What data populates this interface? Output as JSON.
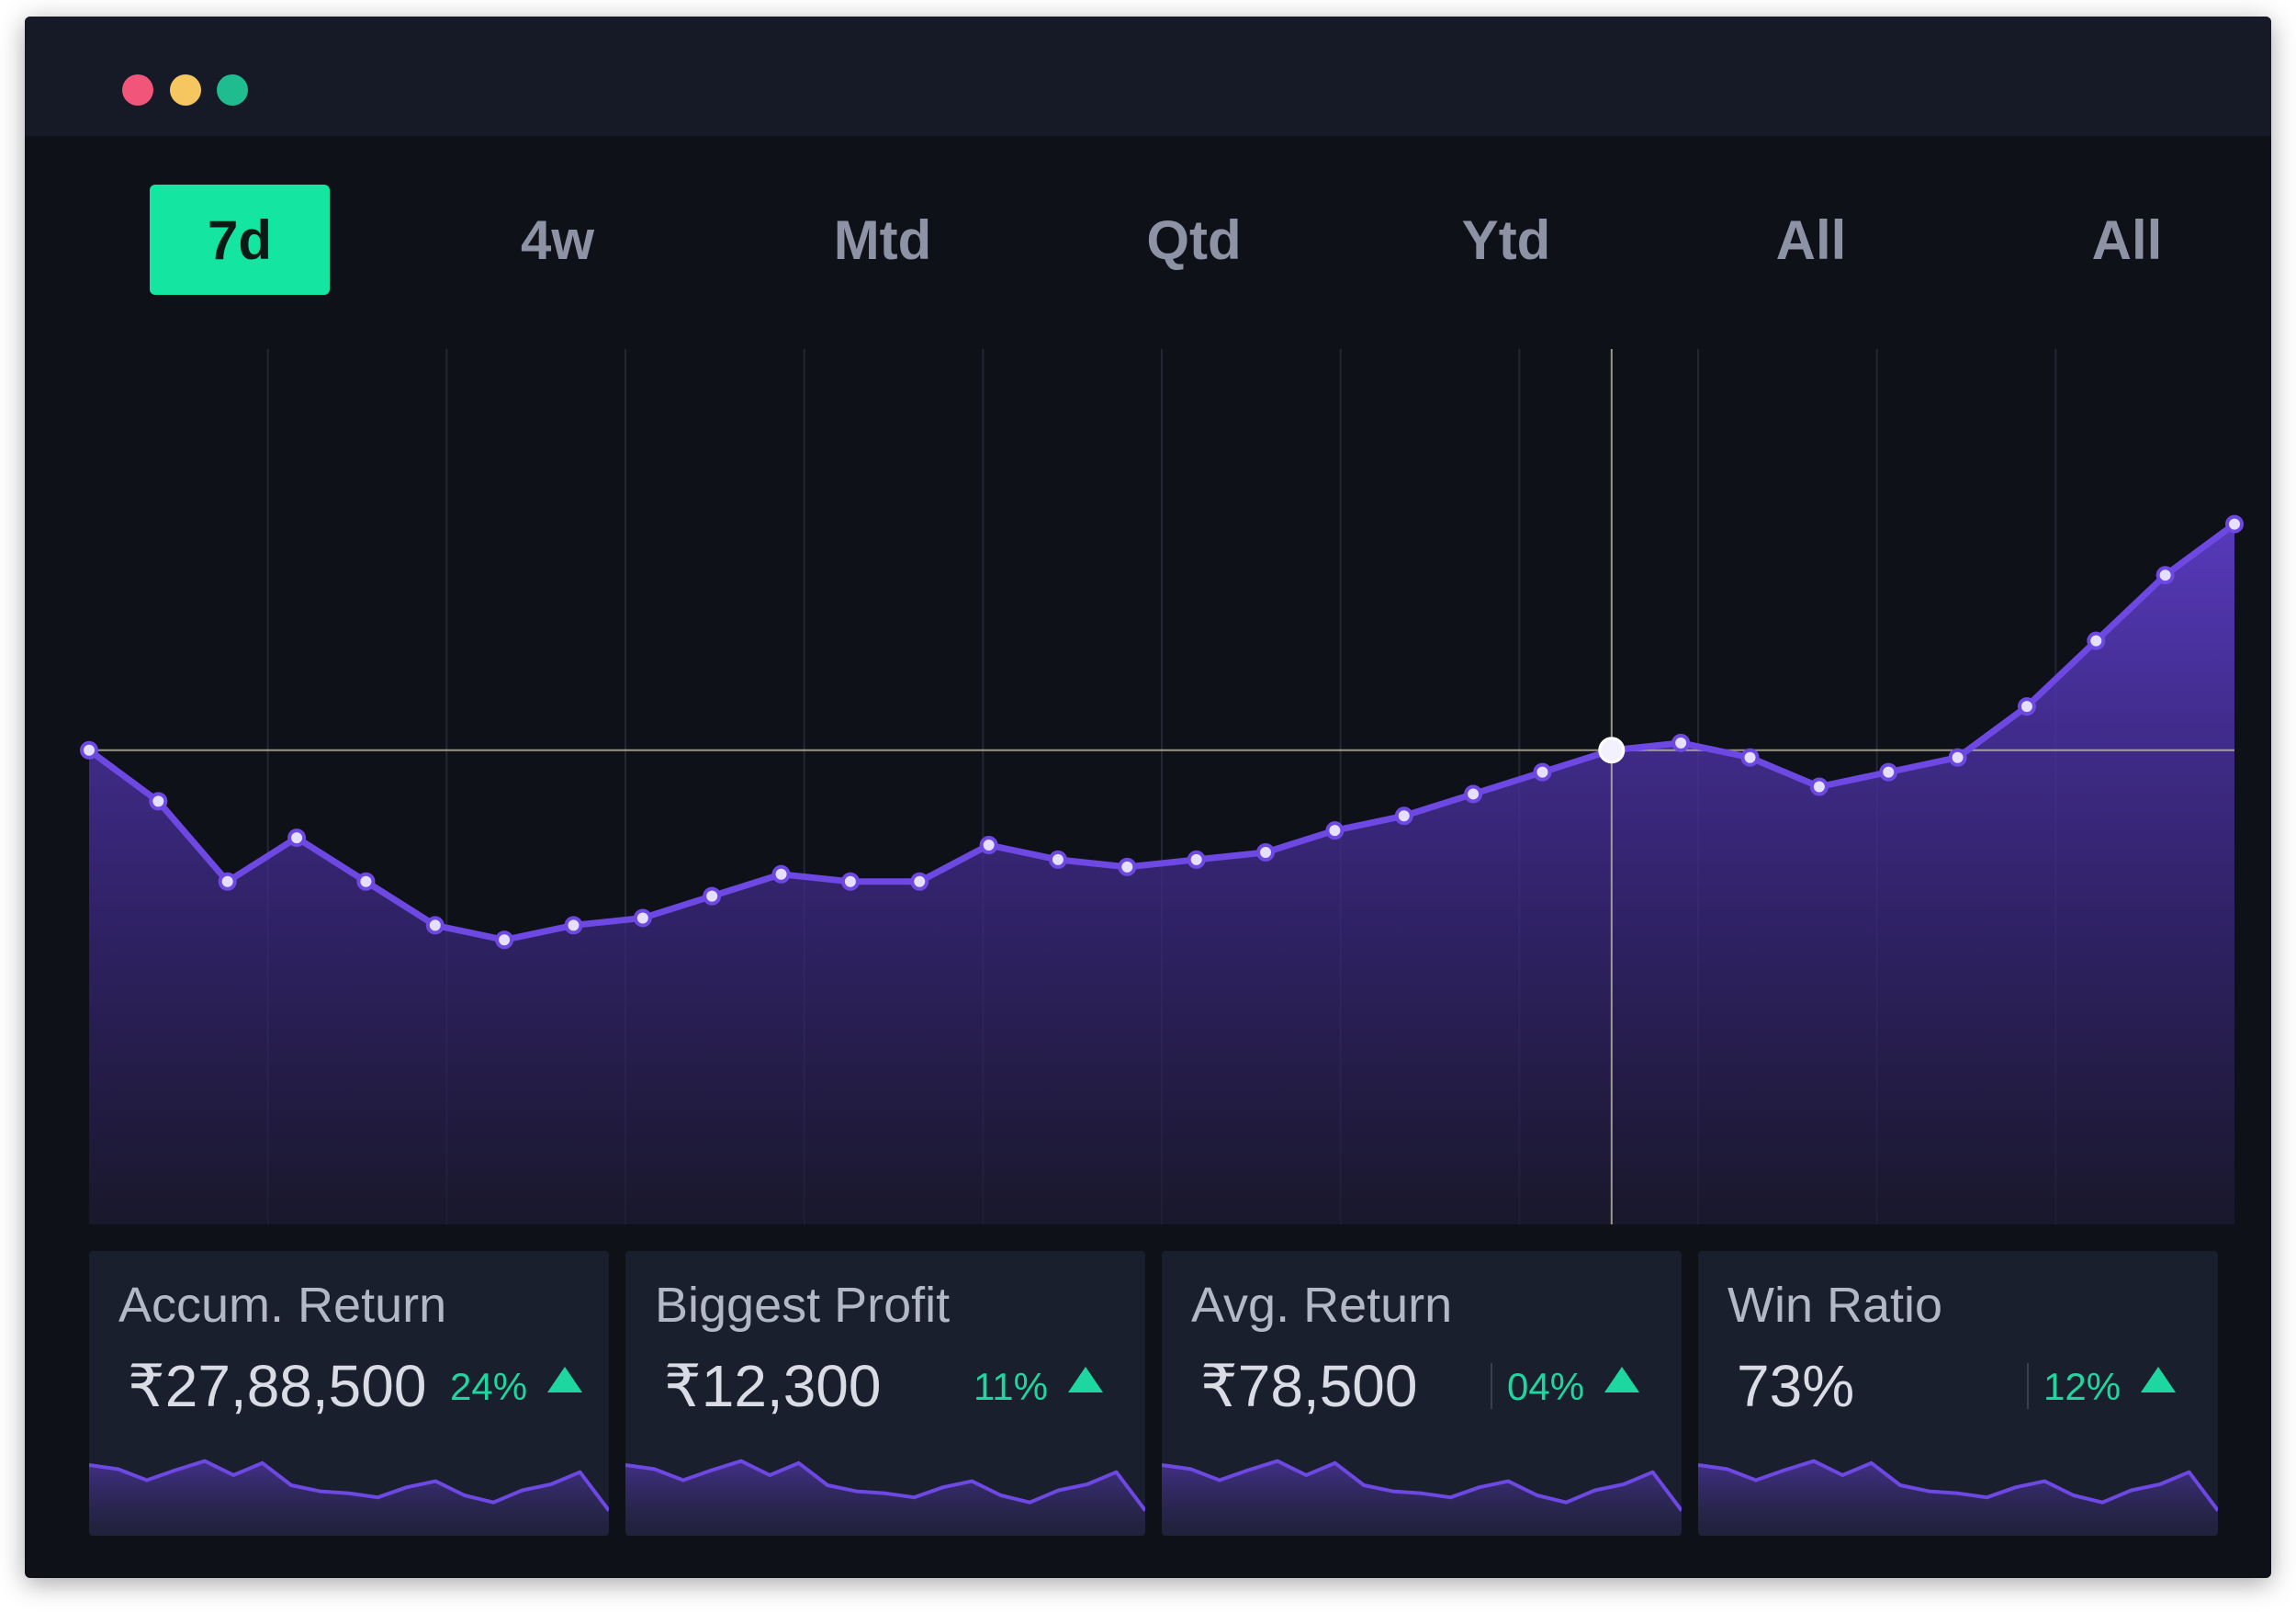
{
  "window": {
    "controls": [
      {
        "name": "close",
        "color": "#f2557a"
      },
      {
        "name": "minimize",
        "color": "#f6c760"
      },
      {
        "name": "maximize",
        "color": "#1fbc8f"
      }
    ]
  },
  "tabs": [
    {
      "label": "7d",
      "active": true
    },
    {
      "label": "4w",
      "active": false
    },
    {
      "label": "Mtd",
      "active": false
    },
    {
      "label": "Qtd",
      "active": false
    },
    {
      "label": "Ytd",
      "active": false
    },
    {
      "label": "All",
      "active": false
    },
    {
      "label": "All",
      "active": false
    }
  ],
  "colors": {
    "accent": "#14e6a2",
    "line": "#6d48e2",
    "positive": "#1ed6a0",
    "gridline": "#232734",
    "crosshair": "#c9c3b0"
  },
  "chart_data": {
    "type": "area",
    "values": [
      65,
      58,
      47,
      53,
      47,
      41,
      39,
      41,
      42,
      45,
      48,
      47,
      47,
      52,
      50,
      49,
      50,
      51,
      54,
      56,
      59,
      62,
      65,
      66,
      64,
      60,
      62,
      64,
      71,
      80,
      89,
      96
    ],
    "highlighted_index": 22,
    "reference_value": 65,
    "ylim": [
      0,
      120
    ],
    "grid": true
  },
  "stats": [
    {
      "title": "Accum. Return",
      "value": "₹27,88,500",
      "change": "24%",
      "direction": "up",
      "divider": false,
      "spark": [
        70,
        66,
        55,
        65,
        74,
        60,
        72,
        50,
        44,
        42,
        38,
        48,
        54,
        40,
        33,
        45,
        51,
        63,
        25
      ]
    },
    {
      "title": "Biggest Profit",
      "value": "₹12,300",
      "change": "11%",
      "direction": "up",
      "divider": false,
      "spark": [
        70,
        66,
        55,
        65,
        74,
        60,
        72,
        50,
        44,
        42,
        38,
        48,
        54,
        40,
        33,
        45,
        51,
        63,
        25
      ]
    },
    {
      "title": "Avg. Return",
      "value": "₹78,500",
      "change": "04%",
      "direction": "up",
      "divider": true,
      "spark": [
        70,
        66,
        55,
        65,
        74,
        60,
        72,
        50,
        44,
        42,
        38,
        48,
        54,
        40,
        33,
        45,
        51,
        63,
        25
      ]
    },
    {
      "title": "Win Ratio",
      "value": "73%",
      "change": "12%",
      "direction": "up",
      "divider": true,
      "spark": [
        70,
        66,
        55,
        65,
        74,
        60,
        72,
        50,
        44,
        42,
        38,
        48,
        54,
        40,
        33,
        45,
        51,
        63,
        25
      ]
    }
  ]
}
